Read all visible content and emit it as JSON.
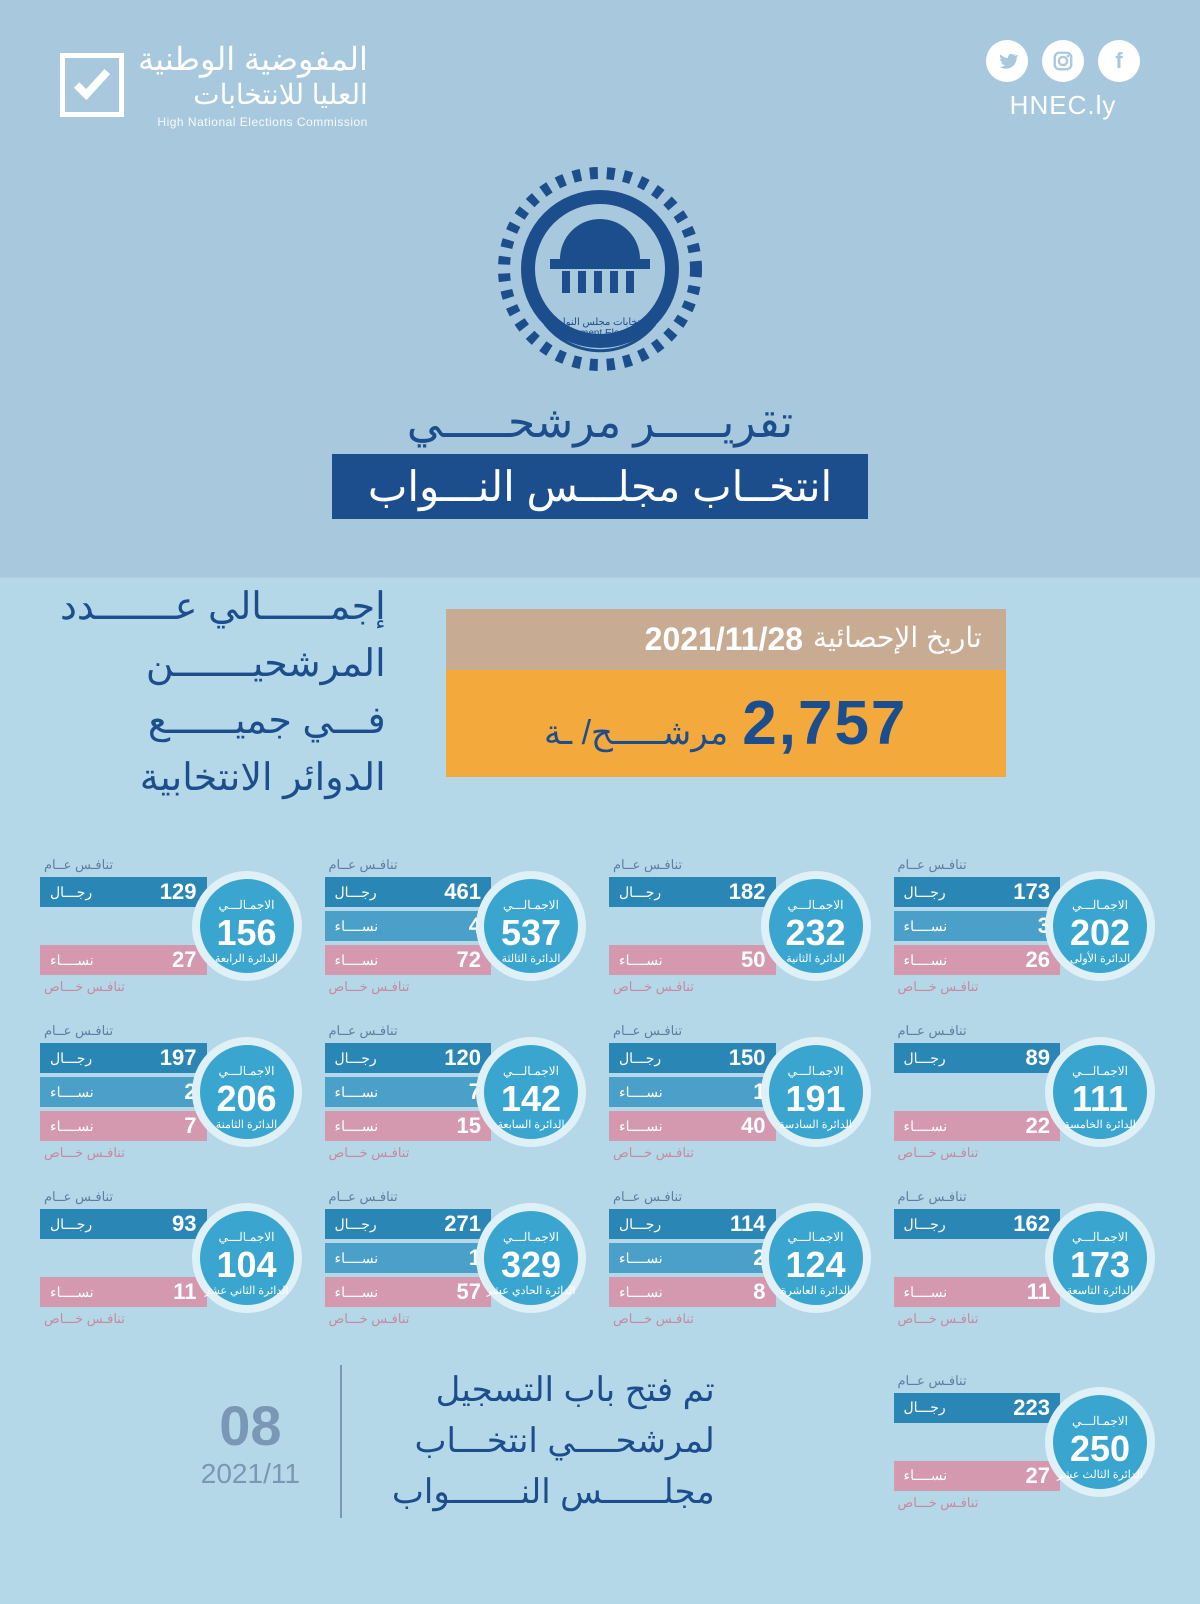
{
  "header": {
    "url": "HNEC.ly",
    "org_line1": "المفوضية الوطنية",
    "org_line2": "العليا للانتخابات",
    "org_sub": "High National Elections Commission"
  },
  "emblem": {
    "label_ar": "انتخابات مجلس النواب",
    "label_en": "Parliament Elections"
  },
  "title": {
    "top": "تقريـــــر مرشحـــــي",
    "band": "انتخــاب مجلـــس النـــواب"
  },
  "summary": {
    "heading_l1": "إجمــــــالي عـــــــدد",
    "heading_l2": "المرشحيـــــــن",
    "heading_l3": "فـــي جميــــــع",
    "heading_l4": "الدوائر الانتخابية",
    "date_label": "تاريخ الإحصائية",
    "date_value": "2021/11/28",
    "total_number": "2,757",
    "total_unit": "مرشـــــح/ ـة"
  },
  "labels": {
    "top_tag": "تنافـس عــام",
    "bottom_tag": "تنافـس خـــاص",
    "circle_top": "الاجمـالـــي",
    "men": "رجـــال",
    "women": "نســــاء"
  },
  "districts": [
    {
      "name": "الدائرة الأولى",
      "total": 202,
      "men": 173,
      "w1": 3,
      "w2": 26
    },
    {
      "name": "الدائرة الثانية",
      "total": 232,
      "men": 182,
      "w1": null,
      "w2": 50
    },
    {
      "name": "الدائرة الثالثة",
      "total": 537,
      "men": 461,
      "w1": 4,
      "w2": 72
    },
    {
      "name": "الدائرة الرابعة",
      "total": 156,
      "men": 129,
      "w1": null,
      "w2": 27
    },
    {
      "name": "الدائرة الخامسة",
      "total": 111,
      "men": 89,
      "w1": null,
      "w2": 22
    },
    {
      "name": "الدائرة السادسة",
      "total": 191,
      "men": 150,
      "w1": 1,
      "w2": 40
    },
    {
      "name": "الدائرة السابعة",
      "total": 142,
      "men": 120,
      "w1": 7,
      "w2": 15
    },
    {
      "name": "الدائرة الثامنة",
      "total": 206,
      "men": 197,
      "w1": 2,
      "w2": 7
    },
    {
      "name": "الدائرة التاسعة",
      "total": 173,
      "men": 162,
      "w1": null,
      "w2": 11
    },
    {
      "name": "الدائرة العاشرة",
      "total": 124,
      "men": 114,
      "w1": 2,
      "w2": 8
    },
    {
      "name": "الدائرة الحادي عشر",
      "total": 329,
      "men": 271,
      "w1": 1,
      "w2": 57
    },
    {
      "name": "الدائرة الثاني عشر",
      "total": 104,
      "men": 93,
      "w1": null,
      "w2": 11
    },
    {
      "name": "الدائرة الثالث عشر",
      "total": 250,
      "men": 223,
      "w1": null,
      "w2": 27
    }
  ],
  "footer": {
    "text_l1": "تم فتح باب التسجيل",
    "text_l2": "لمرشحــــي انتخـــاب",
    "text_l3": "مجلــــــس النـــــــواب",
    "day": "08",
    "month": "2021/11"
  },
  "colors": {
    "bg_top": "#a8c9dd",
    "bg_bottom": "#b4d8e8",
    "navy": "#1c4d8c",
    "circle_fill": "#3aa6d0",
    "circle_border": "#dff0f7",
    "bar_men": "#2a87b5",
    "bar_w1": "#4aa0c9",
    "bar_w2": "#d498af",
    "date_bar": "#c8ab93",
    "total_bar": "#f3a93c",
    "muted": "#7a98b5"
  }
}
